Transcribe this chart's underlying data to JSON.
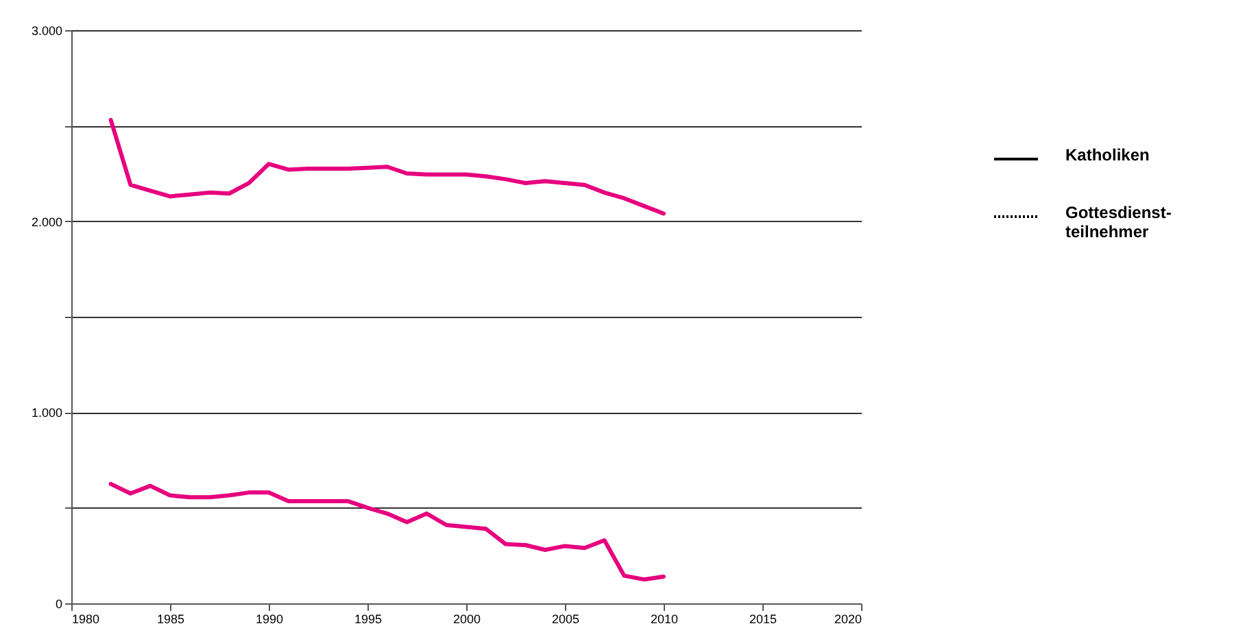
{
  "chart_data": {
    "type": "line",
    "x": [
      1982,
      1983,
      1984,
      1985,
      1986,
      1987,
      1988,
      1989,
      1990,
      1991,
      1992,
      1993,
      1994,
      1995,
      1996,
      1997,
      1998,
      1999,
      2000,
      2001,
      2002,
      2003,
      2004,
      2005,
      2006,
      2007,
      2008,
      2009,
      2010
    ],
    "series": [
      {
        "name": "Katholiken",
        "color": "#e6007e",
        "values": [
          2530,
          2190,
          2160,
          2130,
          2140,
          2150,
          2145,
          2200,
          2300,
          2270,
          2275,
          2275,
          2275,
          2280,
          2285,
          2250,
          2245,
          2245,
          2245,
          2235,
          2220,
          2200,
          2210,
          2200,
          2190,
          2150,
          2120,
          2080,
          2040
        ]
      },
      {
        "name": "Gottesdienst-\nteilnehmer",
        "color": "#e6007e",
        "values": [
          625,
          575,
          615,
          565,
          555,
          555,
          565,
          580,
          580,
          535,
          535,
          535,
          535,
          500,
          470,
          425,
          470,
          410,
          400,
          390,
          310,
          305,
          280,
          300,
          290,
          330,
          145,
          125,
          140
        ]
      }
    ],
    "xlim": [
      1980,
      2020
    ],
    "xticks": [
      1980,
      1985,
      1990,
      1995,
      2000,
      2005,
      2010,
      2015,
      2020
    ],
    "ylim": [
      0,
      3000
    ],
    "yticks": [
      {
        "value": 0,
        "label": "0"
      },
      {
        "value": 500,
        "label": null
      },
      {
        "value": 1000,
        "label": "1.000"
      },
      {
        "value": 1500,
        "label": null
      },
      {
        "value": 2000,
        "label": "2.000"
      },
      {
        "value": 2500,
        "label": null
      },
      {
        "value": 3000,
        "label": "3.000"
      }
    ],
    "grid": "y",
    "legend": "right",
    "marker": "none",
    "line_style": "solid"
  }
}
